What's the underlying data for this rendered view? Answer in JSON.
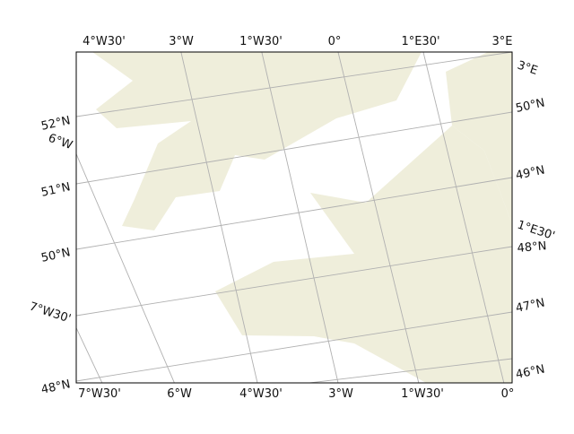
{
  "map": {
    "type": "map",
    "projection": "rotated",
    "land_color": "#efeedb",
    "ocean_color": "#ffffff",
    "gridline_color": "#b0b0b0",
    "frame_color": "#000000",
    "labels": {
      "top": [
        "4°W30'",
        "3°W",
        "1°W30'",
        "0°",
        "1°E30'",
        "3°E"
      ],
      "bottom": [
        "7°W30'",
        "6°W",
        "4°W30'",
        "3°W",
        "1°W30'",
        "0°"
      ],
      "left": [
        "52°N",
        "6°W",
        "51°N",
        "50°N",
        "7°W30'",
        "48°N"
      ],
      "right": [
        "3°E",
        "50°N",
        "49°N",
        "1°E30'",
        "48°N",
        "47°N",
        "46°N"
      ]
    }
  }
}
